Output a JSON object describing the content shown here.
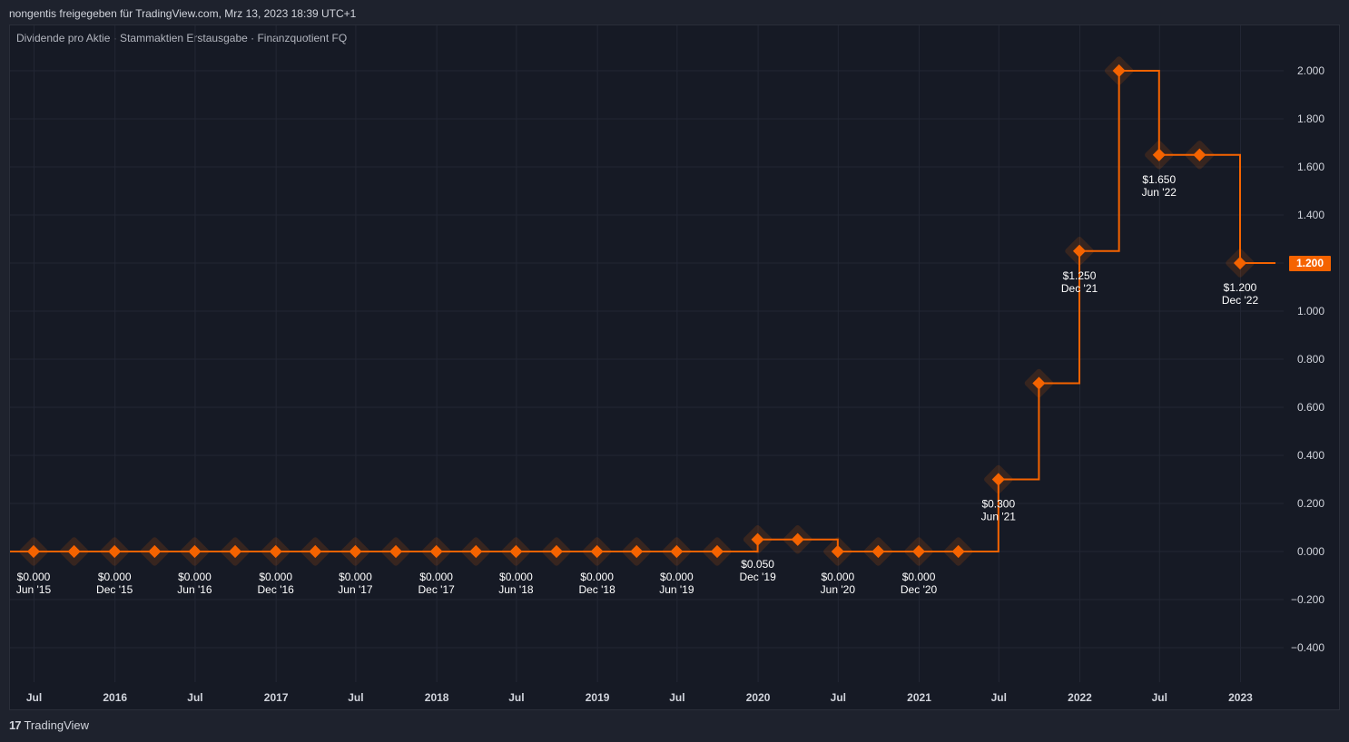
{
  "header": {
    "text": "nongentis freigegeben für TradingView.com, Mrz 13, 2023 18:39 UTC+1"
  },
  "subtitle": "Dividende pro Aktie · Stammaktien Erstausgabe · Finanzquotient FQ",
  "footer": {
    "logo": "17",
    "brand": "TradingView"
  },
  "colors": {
    "series": "#f56300",
    "background": "#161a25",
    "grid": "#232734",
    "badge": "#f56300"
  },
  "chart_data": {
    "type": "line",
    "step": true,
    "ylim": [
      -0.48,
      2.1
    ],
    "yticks": [
      "2.000",
      "1.800",
      "1.600",
      "1.400",
      "1.200",
      "1.000",
      "0.800",
      "0.600",
      "0.400",
      "0.200",
      "0.000",
      "−0.200",
      "−0.400"
    ],
    "ytick_values": [
      2.0,
      1.8,
      1.6,
      1.4,
      1.2,
      1.0,
      0.8,
      0.6,
      0.4,
      0.2,
      0.0,
      -0.2,
      -0.4
    ],
    "xticks": [
      "Jul",
      "2016",
      "Jul",
      "2017",
      "Jul",
      "2018",
      "Jul",
      "2019",
      "Jul",
      "2020",
      "Jul",
      "2021",
      "Jul",
      "2022",
      "Jul",
      "2023"
    ],
    "xtick_dates": [
      "2015-07-01",
      "2016-01-01",
      "2016-07-01",
      "2017-01-01",
      "2017-07-01",
      "2018-01-01",
      "2018-07-01",
      "2019-01-01",
      "2019-07-01",
      "2020-01-01",
      "2020-07-01",
      "2021-01-01",
      "2021-07-01",
      "2022-01-01",
      "2022-07-01",
      "2023-01-01"
    ],
    "last_value_badge": "1.200",
    "points": [
      {
        "x": "2015-06-30",
        "y": 0.0,
        "value": "$0.000",
        "period": "Jun '15"
      },
      {
        "x": "2015-09-30",
        "y": 0.0
      },
      {
        "x": "2015-12-31",
        "y": 0.0,
        "value": "$0.000",
        "period": "Dec '15"
      },
      {
        "x": "2016-03-31",
        "y": 0.0
      },
      {
        "x": "2016-06-30",
        "y": 0.0,
        "value": "$0.000",
        "period": "Jun '16"
      },
      {
        "x": "2016-09-30",
        "y": 0.0
      },
      {
        "x": "2016-12-31",
        "y": 0.0,
        "value": "$0.000",
        "period": "Dec '16"
      },
      {
        "x": "2017-03-31",
        "y": 0.0
      },
      {
        "x": "2017-06-30",
        "y": 0.0,
        "value": "$0.000",
        "period": "Jun '17"
      },
      {
        "x": "2017-09-30",
        "y": 0.0
      },
      {
        "x": "2017-12-31",
        "y": 0.0,
        "value": "$0.000",
        "period": "Dec '17"
      },
      {
        "x": "2018-03-31",
        "y": 0.0
      },
      {
        "x": "2018-06-30",
        "y": 0.0,
        "value": "$0.000",
        "period": "Jun '18"
      },
      {
        "x": "2018-09-30",
        "y": 0.0
      },
      {
        "x": "2018-12-31",
        "y": 0.0,
        "value": "$0.000",
        "period": "Dec '18"
      },
      {
        "x": "2019-03-31",
        "y": 0.0
      },
      {
        "x": "2019-06-30",
        "y": 0.0,
        "value": "$0.000",
        "period": "Jun '19"
      },
      {
        "x": "2019-09-30",
        "y": 0.0
      },
      {
        "x": "2019-12-31",
        "y": 0.05,
        "value": "$0.050",
        "period": "Dec '19"
      },
      {
        "x": "2020-03-31",
        "y": 0.05
      },
      {
        "x": "2020-06-30",
        "y": 0.0,
        "value": "$0.000",
        "period": "Jun '20"
      },
      {
        "x": "2020-09-30",
        "y": 0.0
      },
      {
        "x": "2020-12-31",
        "y": 0.0,
        "value": "$0.000",
        "period": "Dec '20"
      },
      {
        "x": "2021-03-31",
        "y": 0.0
      },
      {
        "x": "2021-06-30",
        "y": 0.3,
        "value": "$0.300",
        "period": "Jun '21"
      },
      {
        "x": "2021-09-30",
        "y": 0.7
      },
      {
        "x": "2021-12-31",
        "y": 1.25,
        "value": "$1.250",
        "period": "Dec '21"
      },
      {
        "x": "2022-03-31",
        "y": 2.0
      },
      {
        "x": "2022-06-30",
        "y": 1.65,
        "value": "$1.650",
        "period": "Jun '22"
      },
      {
        "x": "2022-09-30",
        "y": 1.65
      },
      {
        "x": "2022-12-31",
        "y": 1.2,
        "value": "$1.200",
        "period": "Dec '22"
      }
    ]
  }
}
